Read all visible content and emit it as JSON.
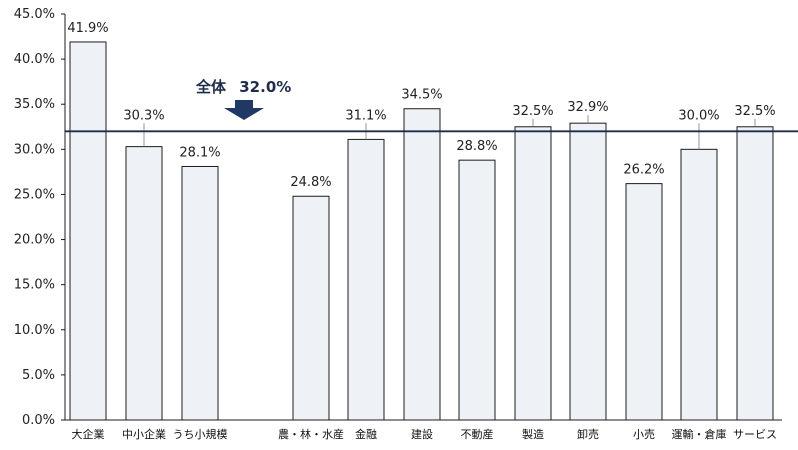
{
  "chart_data": {
    "type": "bar",
    "categories": [
      "大企業",
      "中小企業",
      "うち小規模",
      "",
      "農・林・水産",
      "金融",
      "建設",
      "不動産",
      "製造",
      "卸売",
      "小売",
      "運輸・倉庫",
      "サービス"
    ],
    "values": [
      41.9,
      30.3,
      28.1,
      null,
      24.8,
      31.1,
      34.5,
      28.8,
      32.5,
      32.9,
      26.2,
      30.0,
      32.5
    ],
    "value_labels": [
      "41.9%",
      "30.3%",
      "28.1%",
      "",
      "24.8%",
      "31.1%",
      "34.5%",
      "28.8%",
      "32.5%",
      "32.9%",
      "26.2%",
      "30.0%",
      "32.5%"
    ],
    "ylim": [
      0,
      45
    ],
    "yticks": [
      0,
      5,
      10,
      15,
      20,
      25,
      30,
      35,
      40,
      45
    ],
    "ytick_labels": [
      "0.0%",
      "5.0%",
      "10.0%",
      "15.0%",
      "20.0%",
      "25.0%",
      "30.0%",
      "35.0%",
      "40.0%",
      "45.0%"
    ],
    "reference_line": {
      "value": 32.0,
      "label_prefix": "全体",
      "label_value": "32.0%"
    },
    "grid": false,
    "legend": "none",
    "colors": {
      "bar_fill": "#eef2f6",
      "bar_stroke": "#1c1c1c",
      "reference_line": "#1f2d4a",
      "arrow": "#1f3864"
    }
  }
}
